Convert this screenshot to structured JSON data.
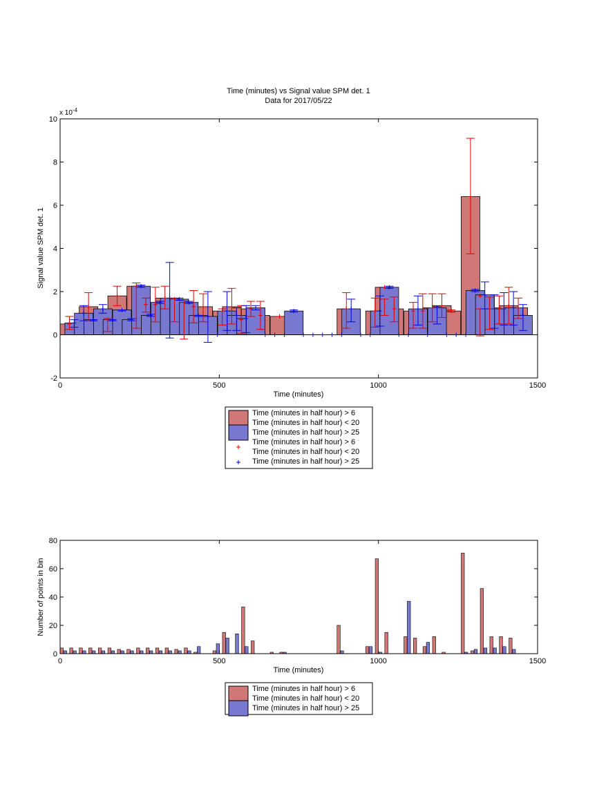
{
  "chart_data": [
    {
      "type": "bar",
      "title": "Time (minutes) vs Signal value SPM det. 1",
      "subtitle": "Data for 2017/05/22",
      "xlabel": "Time (minutes)",
      "ylabel": "Signal value SPM det. 1",
      "xlim": [
        0,
        1500
      ],
      "ylim": [
        -2,
        10
      ],
      "y_exponent_label": "x 10",
      "y_exponent_power": "-4",
      "xticks": [
        "0",
        "500",
        "1000",
        "1500"
      ],
      "yticks": [
        "-2",
        "0",
        "2",
        "4",
        "6",
        "8",
        "10"
      ],
      "grid": false,
      "legend_position": "below",
      "series": [
        {
          "name": "Time (minutes in half hour) > 6\nTime (minutes in half hour) < 20",
          "color": "#d07878",
          "points": [
            [
              0,
              0.5,
              0.25,
              0.85
            ],
            [
              60,
              1.3,
              0.65,
              1.95
            ],
            [
              120,
              0.7,
              0.15,
              0.75
            ],
            [
              150,
              1.8,
              1.35,
              2.25
            ],
            [
              210,
              2.25,
              0.3,
              2.4
            ],
            [
              240,
              1.4,
              1.05,
              1.7
            ],
            [
              270,
              1.4,
              0.6,
              2.2
            ],
            [
              300,
              1.7,
              1.2,
              2.25
            ],
            [
              330,
              1.65,
              0.6,
              1.65
            ],
            [
              360,
              1.5,
              -0.2,
              1.5
            ],
            [
              390,
              1.3,
              0.55,
              2.05
            ],
            [
              420,
              1.3,
              0.6,
              1.9
            ],
            [
              480,
              1.1,
              0.45,
              1.2
            ],
            [
              510,
              1.3,
              0.5,
              2.15
            ],
            [
              540,
              0.7,
              0.05,
              1.35
            ],
            [
              570,
              1.2,
              0.85,
              1.55
            ],
            [
              600,
              0.9,
              0.25,
              1.55
            ],
            [
              660,
              0.85,
              0.85,
              0.85
            ],
            [
              870,
              1.2,
              0.3,
              1.95
            ],
            [
              960,
              1.1,
              0.35,
              1.7
            ],
            [
              990,
              2.2,
              0.9,
              1.65
            ],
            [
              1020,
              1.2,
              0.6,
              1.75
            ],
            [
              1080,
              1.1,
              0.3,
              1.5
            ],
            [
              1110,
              1.1,
              0.3,
              1.9
            ],
            [
              1140,
              1.25,
              0.6,
              1.9
            ],
            [
              1170,
              1.35,
              0.8,
              1.9
            ],
            [
              1200,
              1.1,
              1.05,
              1.15
            ],
            [
              1260,
              6.4,
              3.75,
              9.1
            ],
            [
              1290,
              1.8,
              -0.05,
              1.2
            ],
            [
              1320,
              1.2,
              0.25,
              1.75
            ],
            [
              1350,
              1.25,
              0.5,
              1.8
            ],
            [
              1380,
              1.35,
              0.5,
              2.2
            ],
            [
              1410,
              1.25,
              0.75,
              1.7
            ]
          ]
        },
        {
          "name": "Time (minutes in half hour) > 25",
          "color": "#7878d0",
          "points": [
            [
              15,
              0.55,
              0.35,
              0.7
            ],
            [
              45,
              1.0,
              0.65,
              1.35
            ],
            [
              75,
              0.7,
              0.65,
              0.7
            ],
            [
              105,
              1.2,
              1.0,
              1.4
            ],
            [
              135,
              0.7,
              0.65,
              0.7
            ],
            [
              165,
              1.15,
              1.1,
              1.15
            ],
            [
              195,
              0.7,
              0.65,
              0.75
            ],
            [
              225,
              2.25,
              2.2,
              2.3
            ],
            [
              255,
              0.9,
              0.85,
              0.95
            ],
            [
              285,
              1.5,
              1.45,
              1.55
            ],
            [
              315,
              1.7,
              -0.15,
              3.35
            ],
            [
              345,
              1.65,
              1.6,
              1.7
            ],
            [
              375,
              1.5,
              1.45,
              1.55
            ],
            [
              405,
              0.9,
              0.85,
              0.9
            ],
            [
              435,
              0.85,
              -0.35,
              2.0
            ],
            [
              465,
              0.0,
              0.0,
              0.0
            ],
            [
              495,
              1.1,
              0.2,
              2.0
            ],
            [
              525,
              0.9,
              0.2,
              1.25
            ],
            [
              555,
              0.75,
              0.1,
              1.35
            ],
            [
              585,
              1.25,
              1.15,
              1.35
            ],
            [
              615,
              0.0,
              0.0,
              0.0
            ],
            [
              645,
              0.0,
              0.0,
              0.0
            ],
            [
              675,
              0.0,
              0.0,
              0.0
            ],
            [
              705,
              1.1,
              1.05,
              1.15
            ],
            [
              735,
              0.0,
              0.0,
              0.0
            ],
            [
              765,
              0.0,
              0.0,
              0.0
            ],
            [
              795,
              0.0,
              0.0,
              0.0
            ],
            [
              825,
              0.0,
              0.0,
              0.0
            ],
            [
              855,
              0.0,
              0.0,
              0.0
            ],
            [
              885,
              1.2,
              0.6,
              1.65
            ],
            [
              915,
              0.0,
              0.0,
              0.0
            ],
            [
              945,
              0.0,
              0.0,
              0.0
            ],
            [
              975,
              1.1,
              0.4,
              1.8
            ],
            [
              1005,
              2.2,
              2.15,
              2.25
            ],
            [
              1035,
              0.0,
              0.0,
              0.0
            ],
            [
              1065,
              0.0,
              0.0,
              0.0
            ],
            [
              1095,
              1.2,
              0.45,
              1.8
            ],
            [
              1125,
              0.0,
              0.0,
              0.0
            ],
            [
              1155,
              1.25,
              0.5,
              1.3
            ],
            [
              1185,
              0.0,
              0.0,
              0.0
            ],
            [
              1215,
              0.0,
              0.0,
              0.0
            ],
            [
              1245,
              0.0,
              0.0,
              0.0
            ],
            [
              1275,
              2.05,
              2.0,
              2.1
            ],
            [
              1305,
              1.85,
              1.2,
              2.45
            ],
            [
              1335,
              1.2,
              0.3,
              1.85
            ],
            [
              1365,
              1.2,
              0.45,
              1.95
            ],
            [
              1395,
              1.25,
              0.45,
              2.0
            ],
            [
              1425,
              0.9,
              0.2,
              1.4
            ]
          ]
        }
      ],
      "legend_entries": [
        "Time (minutes in half hour) > 6",
        "Time (minutes in half hour) < 20",
        "Time (minutes in half hour) > 25",
        "Time (minutes in half hour) > 6",
        "Time (minutes in half hour) < 20",
        "Time (minutes in half hour) > 25"
      ]
    },
    {
      "type": "bar",
      "title": "",
      "xlabel": "Time (minutes)",
      "ylabel": "Number of points in bin",
      "xlim": [
        0,
        1500
      ],
      "ylim": [
        0,
        80
      ],
      "xticks": [
        "0",
        "500",
        "1000",
        "1500"
      ],
      "yticks": [
        "0",
        "20",
        "40",
        "60",
        "80"
      ],
      "grid": false,
      "legend_position": "below",
      "series": [
        {
          "name": "Time (minutes in half hour) > 6\nTime (minutes in half hour) < 20",
          "color": "#d07878",
          "points": [
            [
              0,
              4
            ],
            [
              30,
              4
            ],
            [
              60,
              4
            ],
            [
              90,
              4
            ],
            [
              120,
              4
            ],
            [
              150,
              4
            ],
            [
              180,
              3
            ],
            [
              210,
              3
            ],
            [
              240,
              4
            ],
            [
              270,
              4
            ],
            [
              300,
              4
            ],
            [
              330,
              4
            ],
            [
              360,
              3
            ],
            [
              390,
              4
            ],
            [
              420,
              1
            ],
            [
              480,
              2
            ],
            [
              510,
              15
            ],
            [
              540,
              0
            ],
            [
              570,
              33
            ],
            [
              600,
              9
            ],
            [
              660,
              1
            ],
            [
              690,
              1
            ],
            [
              870,
              20
            ],
            [
              960,
              5
            ],
            [
              990,
              67
            ],
            [
              1020,
              15
            ],
            [
              1080,
              12
            ],
            [
              1110,
              11
            ],
            [
              1140,
              5
            ],
            [
              1170,
              12
            ],
            [
              1200,
              1
            ],
            [
              1260,
              71
            ],
            [
              1290,
              2
            ],
            [
              1320,
              46
            ],
            [
              1350,
              12
            ],
            [
              1380,
              12
            ],
            [
              1410,
              11
            ]
          ]
        },
        {
          "name": "Time (minutes in half hour) > 25",
          "color": "#7878d0",
          "points": [
            [
              15,
              2
            ],
            [
              45,
              2
            ],
            [
              75,
              2
            ],
            [
              105,
              2
            ],
            [
              135,
              2
            ],
            [
              165,
              2
            ],
            [
              195,
              2
            ],
            [
              225,
              2
            ],
            [
              255,
              2
            ],
            [
              285,
              2
            ],
            [
              315,
              2
            ],
            [
              345,
              2
            ],
            [
              375,
              2
            ],
            [
              405,
              2
            ],
            [
              435,
              5
            ],
            [
              495,
              7
            ],
            [
              525,
              11
            ],
            [
              555,
              14
            ],
            [
              585,
              5
            ],
            [
              705,
              1
            ],
            [
              885,
              2
            ],
            [
              975,
              5
            ],
            [
              1005,
              1
            ],
            [
              1095,
              37
            ],
            [
              1155,
              8
            ],
            [
              1275,
              1
            ],
            [
              1305,
              3
            ],
            [
              1335,
              4
            ],
            [
              1365,
              4
            ],
            [
              1395,
              5
            ],
            [
              1425,
              3
            ]
          ]
        }
      ],
      "legend_entries": [
        "Time (minutes in half hour) > 6",
        "Time (minutes in half hour) < 20",
        "Time (minutes in half hour) > 25"
      ]
    }
  ]
}
